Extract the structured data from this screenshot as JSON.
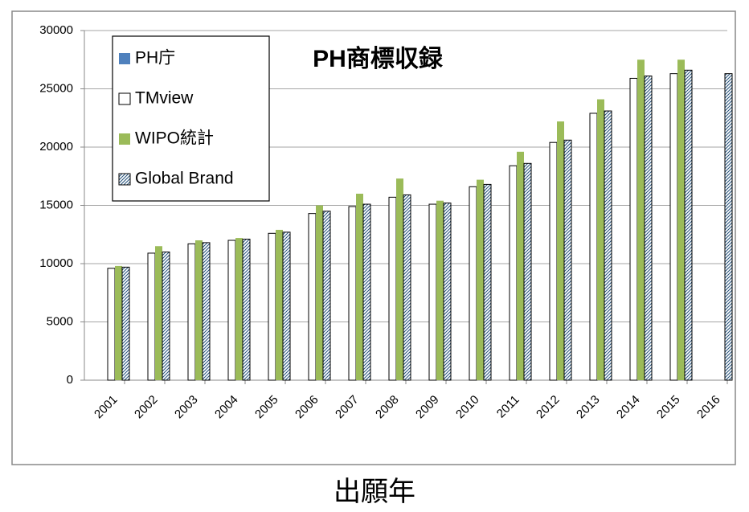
{
  "chart_data": {
    "type": "bar",
    "title": "PH商標収録",
    "x_label": "出願年",
    "categories": [
      "2001",
      "2002",
      "2003",
      "2004",
      "2005",
      "2006",
      "2007",
      "2008",
      "2009",
      "2010",
      "2011",
      "2012",
      "2013",
      "2014",
      "2015",
      "2016"
    ],
    "series": [
      {
        "name": "PH庁",
        "color": "#4f81bd",
        "values": [
          null,
          null,
          null,
          null,
          null,
          null,
          null,
          null,
          null,
          null,
          null,
          null,
          null,
          null,
          null,
          null
        ]
      },
      {
        "name": "TMview",
        "color": "#ffffff",
        "values": [
          9600,
          10900,
          11700,
          12000,
          12600,
          14300,
          14900,
          15700,
          15100,
          16600,
          18400,
          20400,
          22900,
          25900,
          26300,
          null
        ]
      },
      {
        "name": "WIPO統計",
        "color": "#9bbb59",
        "values": [
          9800,
          11500,
          12000,
          12200,
          12900,
          15000,
          16000,
          17300,
          15400,
          17200,
          19600,
          22200,
          24100,
          27500,
          27500,
          null
        ]
      },
      {
        "name": "Global Brand",
        "color": "#1f4e79",
        "pattern": "hatch",
        "values": [
          9700,
          11000,
          11800,
          12100,
          12700,
          14500,
          15100,
          15900,
          15200,
          16800,
          18600,
          20600,
          23100,
          26100,
          26600,
          26300
        ]
      }
    ],
    "ylim": [
      0,
      30000
    ],
    "yticks": [
      0,
      5000,
      10000,
      15000,
      20000,
      25000,
      30000
    ],
    "grid": true,
    "legend": "upper left"
  }
}
